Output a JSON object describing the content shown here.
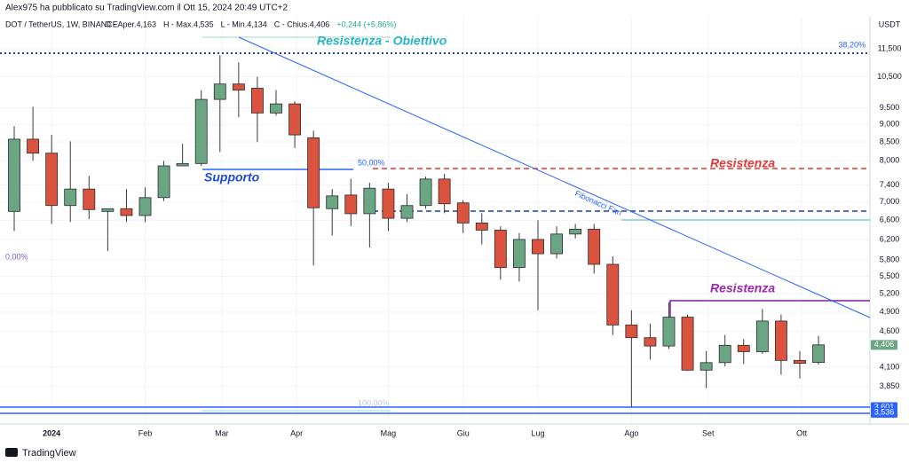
{
  "page": {
    "author_line": "Alex975 ha pubblicato su TradingView.com il Ott 15, 2024 20:49 UTC+2",
    "brand": "TradingView"
  },
  "chart_data": {
    "type": "candlestick",
    "symbol": "DOT / TetherUS, 1W, BINANCE",
    "ohlc_header": [
      "O - Aper.4,163",
      "H - Max.4,535",
      "L - Min.4,134",
      "C - Chius.4,406",
      "+0,244 (+5,86%)"
    ],
    "currency": "USDT",
    "log_scale": true,
    "grid": true,
    "up_color": "#6aa584",
    "down_color": "#d9533f",
    "open": [
      6.79,
      8.58,
      8.2,
      6.92,
      7.3,
      6.79,
      6.85,
      6.7,
      7.1,
      7.87,
      7.93,
      9.76,
      10.26,
      10.12,
      9.34,
      9.62,
      8.62,
      6.85,
      7.16,
      6.74,
      7.3,
      6.64,
      6.92,
      7.54,
      6.98,
      6.54,
      6.39,
      5.66,
      6.2,
      5.92,
      6.31,
      6.41,
      5.72,
      4.7,
      4.51,
      4.39,
      4.82,
      4.06,
      4.16,
      4.4,
      4.31,
      4.76,
      4.19,
      4.163
    ],
    "high": [
      8.95,
      9.53,
      8.7,
      8.52,
      7.62,
      6.85,
      7.3,
      7.34,
      8.0,
      8.45,
      10.06,
      11.27,
      11.0,
      10.5,
      10.06,
      9.7,
      8.82,
      7.3,
      7.55,
      7.45,
      7.45,
      7.18,
      7.6,
      7.67,
      7.04,
      6.75,
      6.47,
      6.33,
      6.6,
      6.47,
      6.52,
      6.52,
      5.87,
      4.93,
      4.72,
      5.06,
      4.86,
      4.32,
      4.55,
      4.49,
      4.95,
      4.86,
      4.32,
      4.535
    ],
    "low": [
      6.37,
      8.0,
      6.52,
      6.56,
      6.62,
      5.97,
      6.56,
      6.56,
      7.02,
      7.87,
      7.87,
      8.23,
      9.21,
      8.5,
      9.26,
      8.34,
      5.7,
      6.28,
      6.47,
      6.04,
      6.37,
      6.56,
      6.85,
      6.75,
      6.33,
      6.1,
      5.44,
      5.41,
      4.93,
      5.83,
      6.22,
      5.55,
      4.55,
      3.6,
      4.2,
      4.35,
      4.05,
      3.83,
      4.11,
      4.14,
      4.28,
      4.0,
      3.95,
      4.134
    ],
    "close": [
      8.58,
      8.2,
      6.92,
      7.3,
      6.83,
      6.85,
      6.7,
      7.1,
      7.87,
      7.93,
      9.76,
      10.26,
      10.06,
      9.34,
      9.62,
      8.7,
      6.87,
      7.14,
      6.74,
      7.32,
      6.64,
      6.92,
      7.54,
      6.96,
      6.54,
      6.39,
      5.66,
      6.2,
      5.92,
      6.31,
      6.41,
      5.72,
      4.7,
      4.51,
      4.39,
      4.82,
      4.06,
      4.16,
      4.4,
      4.31,
      4.76,
      4.19,
      4.15,
      4.406
    ],
    "xlim": [
      -0.76,
      45.75
    ],
    "xticks": [
      {
        "value": 2.0,
        "label": "2024"
      },
      {
        "value": 7.0,
        "label": "Feb"
      },
      {
        "value": 11.1,
        "label": "Mar"
      },
      {
        "value": 15.1,
        "label": "Apr"
      },
      {
        "value": 20.0,
        "label": "Mag"
      },
      {
        "value": 24.0,
        "label": "Giu"
      },
      {
        "value": 28.0,
        "label": "Lug"
      },
      {
        "value": 33.0,
        "label": "Ago"
      },
      {
        "value": 37.1,
        "label": "Set"
      },
      {
        "value": 42.1,
        "label": "Ott"
      }
    ],
    "ylim": [
      3.41,
      12.79
    ],
    "yticks": [
      {
        "value": 3.85,
        "label": "3,850"
      },
      {
        "value": 4.1,
        "label": "4,100"
      },
      {
        "value": 4.6,
        "label": "4,600"
      },
      {
        "value": 4.9,
        "label": "4,900"
      },
      {
        "value": 5.2,
        "label": "5,200"
      },
      {
        "value": 5.5,
        "label": "5,500"
      },
      {
        "value": 5.8,
        "label": "5,800"
      },
      {
        "value": 6.2,
        "label": "6,200"
      },
      {
        "value": 6.6,
        "label": "6,600"
      },
      {
        "value": 7.0,
        "label": "7,000"
      },
      {
        "value": 7.4,
        "label": "7,400"
      },
      {
        "value": 8.0,
        "label": "8,000"
      },
      {
        "value": 8.5,
        "label": "8,500"
      },
      {
        "value": 9.0,
        "label": "9,000"
      },
      {
        "value": 9.5,
        "label": "9,500"
      },
      {
        "value": 10.5,
        "label": "10,500"
      },
      {
        "value": 11.5,
        "label": "11,500"
      }
    ],
    "price_labels": [
      {
        "value": 4.406,
        "label": "4,406",
        "color": "#6aa584"
      },
      {
        "value": 3.601,
        "label": "3,601",
        "color": "#2962ff"
      },
      {
        "value": 3.536,
        "label": "3,536",
        "color": "#2962ff"
      }
    ],
    "annotations": {
      "target": "Resistenza - Obiettivo",
      "support": "Supporto",
      "resistance_red": "Resistenza",
      "resistance_purple": "Resistenza",
      "fan": "Fibonacci Fan",
      "fib_382": "38,20%",
      "fib_50": "50,00%",
      "fib_0": "0,00%",
      "fib_100": "100,00%"
    }
  }
}
